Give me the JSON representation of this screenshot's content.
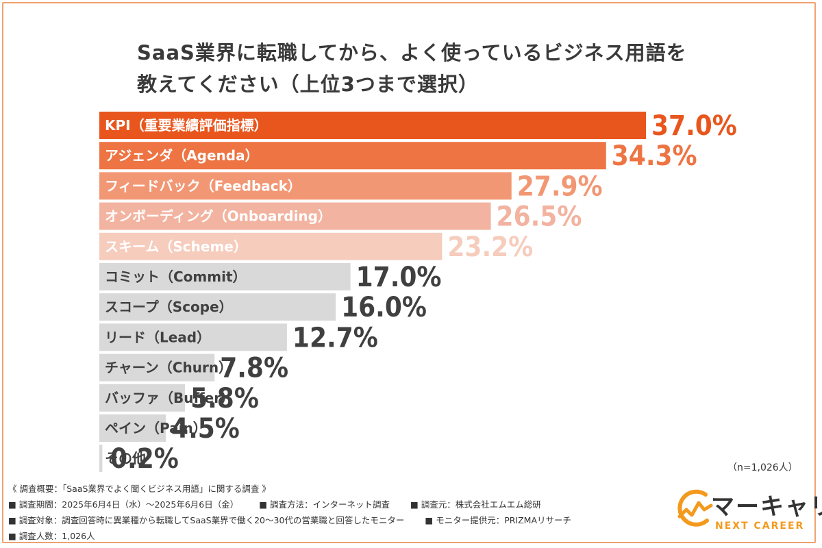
{
  "header": {
    "title_line1": "SaaS業界に転職してから、よく使っているビジネス用語を",
    "title_line2": "教えてください（上位3つまで選択）"
  },
  "sample_size": "（n=1,026人）",
  "chart_data": {
    "type": "bar",
    "orientation": "horizontal",
    "categories": [
      "KPI（重要業績評価指標）",
      "アジェンダ（Agenda）",
      "フィードバック（Feedback）",
      "オンボーディング（Onboarding）",
      "スキーム（Scheme）",
      "コミット（Commit）",
      "スコープ（Scope）",
      "リード（Lead）",
      "チャーン（Churn）",
      "バッファ（Buffer）",
      "ペイン（Pain）",
      "その他"
    ],
    "values": [
      37.0,
      34.3,
      27.9,
      26.5,
      23.2,
      17.0,
      16.0,
      12.7,
      7.8,
      5.8,
      4.5,
      0.2
    ],
    "value_labels": [
      "37.0%",
      "34.3%",
      "27.9%",
      "26.5%",
      "23.2%",
      "17.0%",
      "16.0%",
      "12.7%",
      "7.8%",
      "5.8%",
      "4.5%",
      "0.2%"
    ],
    "bar_colors": [
      "#e8561d",
      "#ee7443",
      "#f29774",
      "#f2b3a0",
      "#f6ccbd",
      "#d9d9d9",
      "#d9d9d9",
      "#d9d9d9",
      "#d9d9d9",
      "#d9d9d9",
      "#d9d9d9",
      "#d9d9d9"
    ],
    "label_colors": [
      "#ffffff",
      "#ffffff",
      "#ffffff",
      "#ffffff",
      "#ffffff",
      "#404040",
      "#404040",
      "#404040",
      "#404040",
      "#404040",
      "#404040",
      "#404040"
    ],
    "value_colors": [
      "#e8561d",
      "#ee7443",
      "#f29774",
      "#f2b3a0",
      "#f6ccbd",
      "#404040",
      "#404040",
      "#404040",
      "#404040",
      "#404040",
      "#404040",
      "#404040"
    ],
    "xlim": [
      0,
      37.0
    ],
    "unit": "%"
  },
  "footer": {
    "overview": "《 調査概要：「SaaS業界でよく聞くビジネス用語」に関する調査 》",
    "period": "■ 調査期間：2025年6月4日（水）～2025年6月6日（金）",
    "method": "■ 調査方法：インターネット調査",
    "organizer": "■ 調査元：株式会社エムエム総研",
    "target": "■ 調査対象：調査回答時に異業種から転職してSaaS業界で働く20～30代の営業職と回答したモニター",
    "provider": "■ モニター提供元：PRIZMAリサーチ",
    "count": "■ 調査人数：1,026人"
  },
  "logo": {
    "name": "マーキャリ",
    "sub": "NEXT CAREER",
    "accent": "#f39a1e"
  }
}
